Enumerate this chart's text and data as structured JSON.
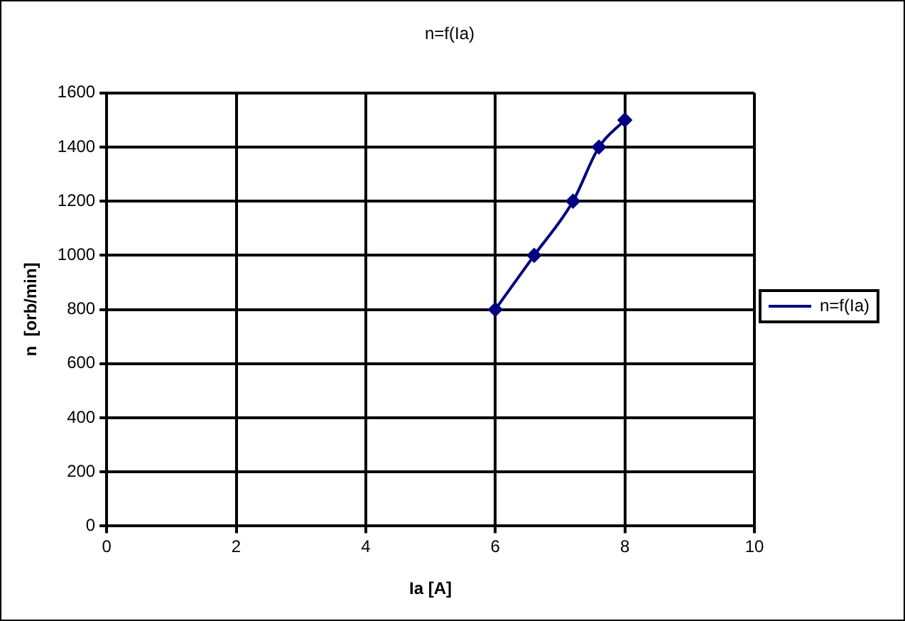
{
  "chart_data": {
    "type": "line",
    "title": "n=f(Ia)",
    "xlabel": "Ia [A]",
    "ylabel": "n  [orb/min]",
    "x": [
      6,
      6.6,
      7.2,
      7.6,
      8
    ],
    "series": [
      {
        "name": "n=f(Ia)",
        "color": "#000080",
        "values": [
          800,
          1000,
          1200,
          1400,
          1500
        ]
      }
    ],
    "xlim": [
      0,
      10
    ],
    "xticks": [
      0,
      2,
      4,
      6,
      8,
      10
    ],
    "ylim": [
      0,
      1600
    ],
    "yticks": [
      0,
      200,
      400,
      600,
      800,
      1000,
      1200,
      1400,
      1600
    ],
    "grid": true,
    "legend": "right",
    "marker": "diamond",
    "line_style": "solid"
  }
}
